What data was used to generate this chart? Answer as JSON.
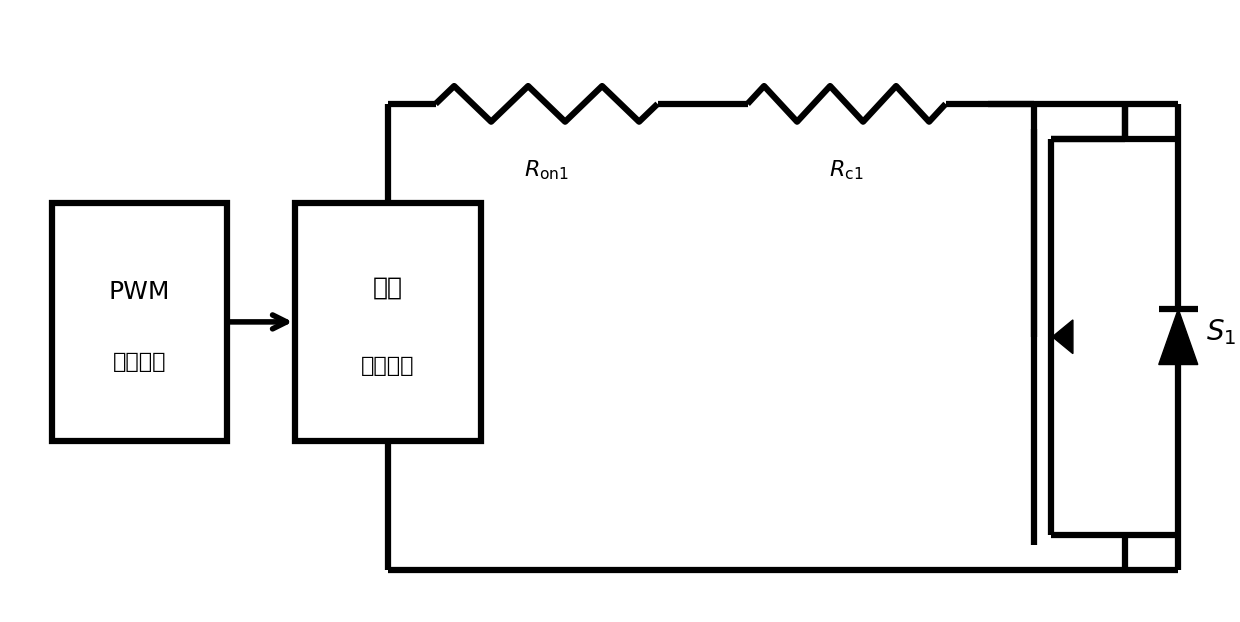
{
  "fig_width": 12.4,
  "fig_height": 6.22,
  "dpi": 100,
  "bg_color": "#ffffff",
  "line_color": "#000000",
  "lw": 3.0,
  "lw_thick": 4.5,
  "pwm_label1": "PWM",
  "pwm_label2": "驱动信号",
  "drv_label1": "上管",
  "drv_label2": "驱动电路",
  "Ron1_label": "$R_{\\mathrm{on1}}$",
  "Rc1_label": "$R_{\\mathrm{c1}}$",
  "S1_label": "$S_1$"
}
